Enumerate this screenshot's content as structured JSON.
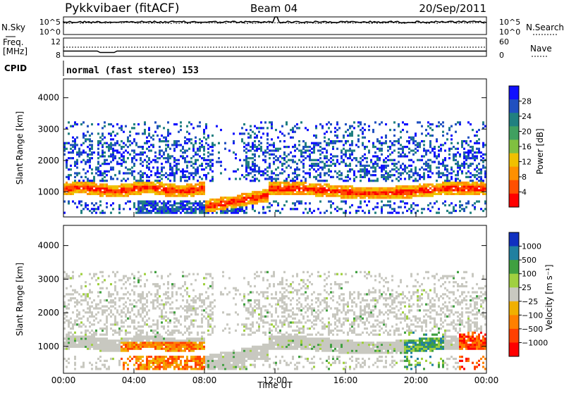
{
  "header": {
    "station": "Pykkvibaer (fitACF)",
    "beam": "Beam 04",
    "date": "20/Sep/2011"
  },
  "nsky_panel": {
    "left_label": "N.Sky",
    "right_label": "N.Search",
    "ticks": [
      "10^5",
      "10^0"
    ],
    "right_ticks": [
      "10^5",
      "10^0"
    ]
  },
  "freq_panel": {
    "label_line1": "Freq.",
    "label_line2": "[MHz]",
    "left_ticks": [
      "12",
      "8"
    ],
    "right_label": "Nave",
    "right_ticks": [
      "60",
      "0"
    ]
  },
  "cpid_panel": {
    "label": "CPID",
    "text": "normal (fast stereo) 153"
  },
  "chart_data": [
    {
      "type": "heatmap",
      "name": "Power",
      "ylabel": "Slant Range [km]",
      "ylim": [
        200,
        4600
      ],
      "yticks": [
        1000,
        2000,
        3000,
        4000
      ],
      "xlim": [
        "00:00",
        "24:00"
      ],
      "colorbar": {
        "label": "Power [dB]",
        "ticks": [
          "4",
          "8",
          "12",
          "16",
          "20",
          "24",
          "28"
        ],
        "colors": [
          "#1010ff",
          "#2050c0",
          "#208080",
          "#40a060",
          "#80c040",
          "#f0c000",
          "#ff9000",
          "#ff5000",
          "#ff0000"
        ]
      }
    },
    {
      "type": "heatmap",
      "name": "Velocity",
      "ylabel": "Slant Range [km]",
      "ylim": [
        200,
        4600
      ],
      "yticks": [
        1000,
        2000,
        3000,
        4000
      ],
      "xlim": [
        "00:00",
        "24:00"
      ],
      "colorbar": {
        "label": "Velocity [m s⁻¹]",
        "ticks": [
          "1000",
          "500",
          "100",
          "25",
          "−25",
          "−100",
          "−500",
          "−1000"
        ],
        "colors": [
          "#1030c0",
          "#2080a0",
          "#40a040",
          "#a0d040",
          "#c8c8c0",
          "#f0b000",
          "#ff8000",
          "#ff4000",
          "#ff0000"
        ]
      }
    }
  ],
  "time_axis": {
    "ticks": [
      "00:00",
      "04:00",
      "08:00",
      "12:00",
      "16:00",
      "20:00",
      "00:00"
    ],
    "label": "Time UT"
  }
}
